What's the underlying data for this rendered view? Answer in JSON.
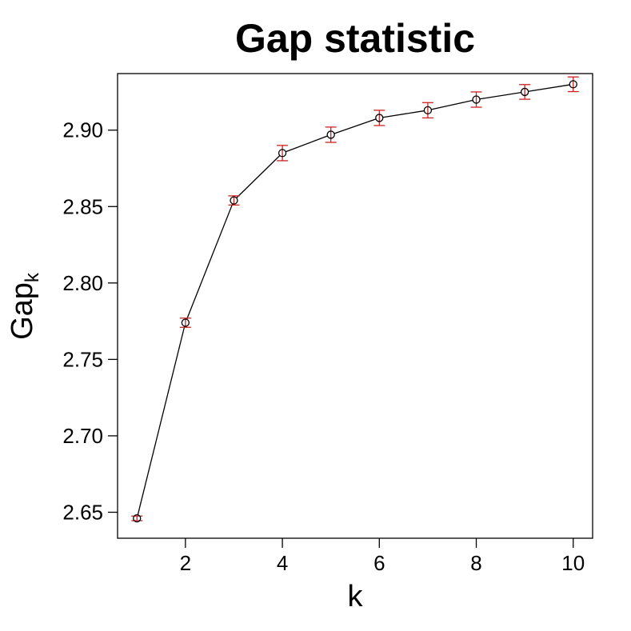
{
  "chart_data": {
    "type": "line",
    "title": "Gap statistic",
    "xlabel": "k",
    "ylabel": "Gap",
    "ylabel_subscript": "k",
    "xlim": [
      0.6,
      10.4
    ],
    "ylim": [
      2.633,
      2.937
    ],
    "x_ticks": [
      2,
      4,
      6,
      8,
      10
    ],
    "y_ticks": [
      2.65,
      2.7,
      2.75,
      2.8,
      2.85,
      2.9
    ],
    "y_tick_labels": [
      "2.65",
      "2.70",
      "2.75",
      "2.80",
      "2.85",
      "2.90"
    ],
    "grid": false,
    "legend": "none",
    "series": [
      {
        "x": [
          1,
          2,
          3,
          4,
          5,
          6,
          7,
          8,
          9,
          10
        ],
        "values": [
          2.646,
          2.774,
          2.854,
          2.885,
          2.897,
          2.908,
          2.913,
          2.92,
          2.925,
          2.93
        ],
        "error": [
          0.0015,
          0.003,
          0.003,
          0.005,
          0.005,
          0.005,
          0.005,
          0.005,
          0.0048,
          0.0048
        ],
        "color": "#000000",
        "error_color": "#cc2222"
      }
    ]
  }
}
